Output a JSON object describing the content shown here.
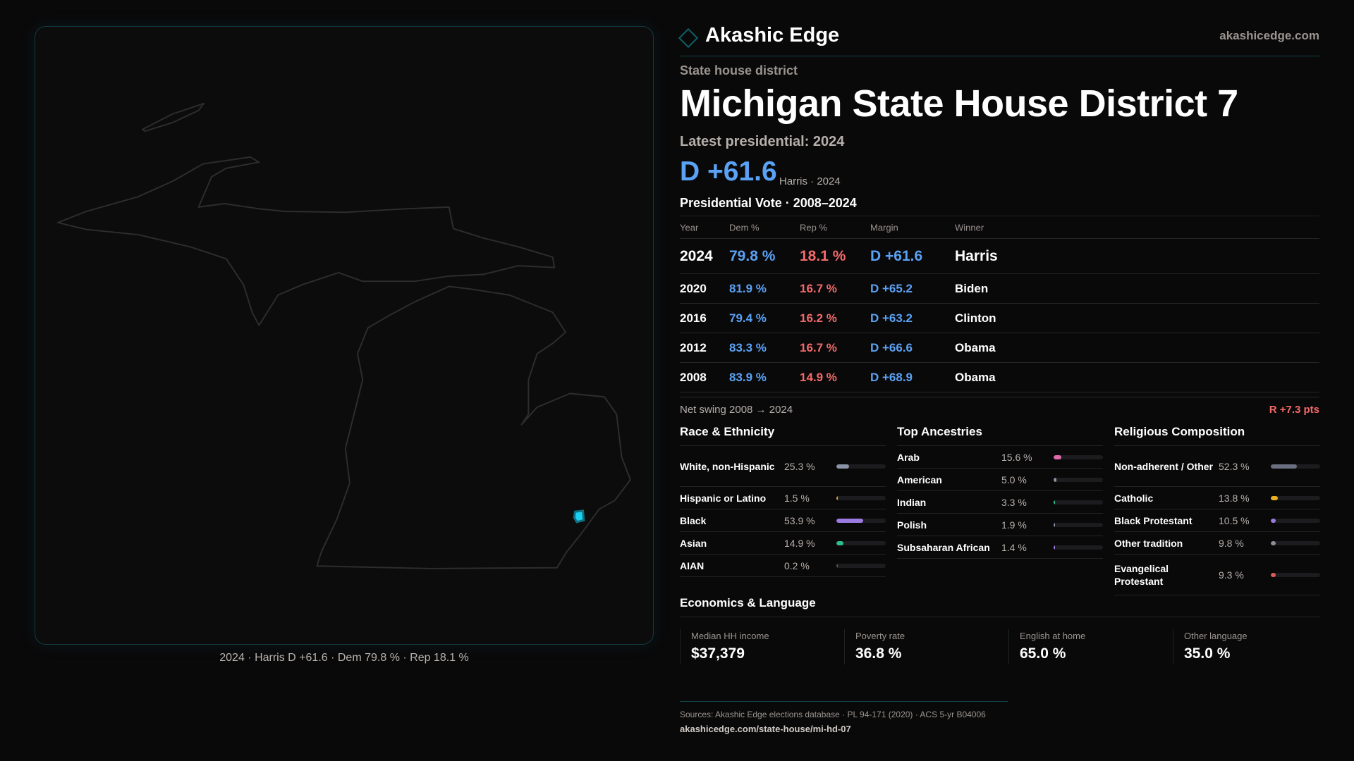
{
  "brand": {
    "name": "Akashic Edge",
    "site": "akashicedge.com"
  },
  "kicker": "State house district",
  "title": "Michigan State House District 7",
  "latest": "Latest presidential: 2024",
  "headline": {
    "margin": "D +61.6",
    "sub": "Harris · 2024"
  },
  "map": {
    "caption": "2024 · Harris D +61.6 · Dem 79.8 % · Rep 18.1 %",
    "highlight_color": "#1ad0f0"
  },
  "vote": {
    "title": "Presidential Vote · 2008–2024",
    "headers": [
      "Year",
      "Dem %",
      "Rep %",
      "Margin",
      "Winner"
    ],
    "rows": [
      {
        "year": "2024",
        "dem": "79.8 %",
        "rep": "18.1 %",
        "margin": "D +61.6",
        "winner": "Harris"
      },
      {
        "year": "2020",
        "dem": "81.9 %",
        "rep": "16.7 %",
        "margin": "D +65.2",
        "winner": "Biden"
      },
      {
        "year": "2016",
        "dem": "79.4 %",
        "rep": "16.2 %",
        "margin": "D +63.2",
        "winner": "Clinton"
      },
      {
        "year": "2012",
        "dem": "83.3 %",
        "rep": "16.7 %",
        "margin": "D +66.6",
        "winner": "Obama"
      },
      {
        "year": "2008",
        "dem": "83.9 %",
        "rep": "14.9 %",
        "margin": "D +68.9",
        "winner": "Obama"
      }
    ],
    "swing_label": "Net swing 2008 → 2024",
    "swing_value": "R +7.3 pts"
  },
  "colors": {
    "dem": "#5aa2f5",
    "rep": "#f26a6a",
    "accent": "#0f5f66"
  },
  "sections": [
    {
      "title": "Race & Ethnicity",
      "items": [
        {
          "label": "White, non-Hispanic",
          "value": "25.3 %",
          "pct": 25.3,
          "color": "#8a94a6",
          "tall": true
        },
        {
          "label": "Hispanic or Latino",
          "value": "1.5 %",
          "pct": 1.5,
          "color": "#e8a33a"
        },
        {
          "label": "Black",
          "value": "53.9 %",
          "pct": 53.9,
          "color": "#9b7be0"
        },
        {
          "label": "Asian",
          "value": "14.9 %",
          "pct": 14.9,
          "color": "#2fbf8a"
        },
        {
          "label": "AIAN",
          "value": "0.2 %",
          "pct": 0.2,
          "color": "#555"
        }
      ]
    },
    {
      "title": "Top Ancestries",
      "items": [
        {
          "label": "Arab",
          "value": "15.6 %",
          "pct": 15.6,
          "color": "#e06aa8"
        },
        {
          "label": "American",
          "value": "5.0 %",
          "pct": 5.0,
          "color": "#8a94a6"
        },
        {
          "label": "Indian",
          "value": "3.3 %",
          "pct": 3.3,
          "color": "#2fbf8a"
        },
        {
          "label": "Polish",
          "value": "1.9 %",
          "pct": 1.9,
          "color": "#8a94a6"
        },
        {
          "label": "Subsaharan African",
          "value": "1.4 %",
          "pct": 1.4,
          "color": "#9b7be0"
        }
      ]
    },
    {
      "title": "Religious Composition",
      "items": [
        {
          "label": "Non-adherent / Other",
          "value": "52.3 %",
          "pct": 52.3,
          "color": "#6b7080",
          "tall": true
        },
        {
          "label": "Catholic",
          "value": "13.8 %",
          "pct": 13.8,
          "color": "#e8b020"
        },
        {
          "label": "Black Protestant",
          "value": "10.5 %",
          "pct": 10.5,
          "color": "#9b7be0"
        },
        {
          "label": "Other tradition",
          "value": "9.8 %",
          "pct": 9.8,
          "color": "#8a8f99"
        },
        {
          "label": "Evangelical Protestant",
          "value": "9.3 %",
          "pct": 9.3,
          "color": "#e05a5a",
          "tall": true
        }
      ]
    }
  ],
  "economics": {
    "title": "Economics & Language",
    "cards": [
      {
        "label": "Median HH income",
        "value": "$37,379"
      },
      {
        "label": "Poverty rate",
        "value": "36.8 %"
      },
      {
        "label": "English at home",
        "value": "65.0 %"
      },
      {
        "label": "Other language",
        "value": "35.0 %"
      }
    ]
  },
  "footer": {
    "sources": "Sources: Akashic Edge elections database · PL 94-171 (2020) · ACS 5-yr B04006",
    "url": "akashicedge.com/state-house/mi-hd-07"
  }
}
